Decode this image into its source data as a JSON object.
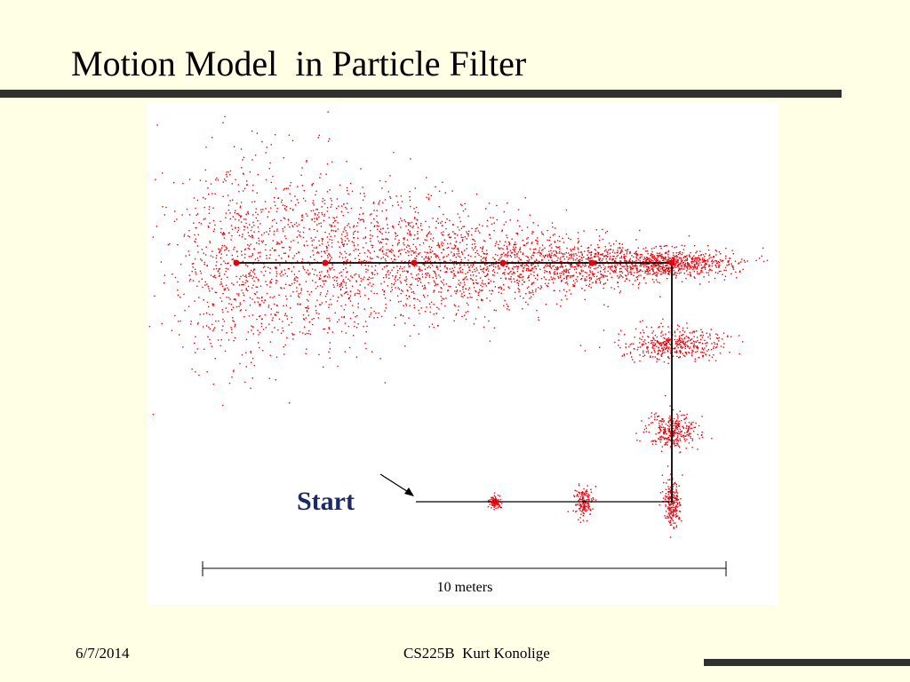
{
  "slide": {
    "title": "Motion Model  in Particle Filter",
    "footer_date": "6/7/2014",
    "footer_center": "CS225B  Kurt Konolige"
  },
  "figure": {
    "start_label": "Start",
    "scale_label": "10 meters"
  },
  "colors": {
    "background": "#ffffe6",
    "particle": "#e8000a",
    "path": "#000000",
    "start_label": "#1a2a66",
    "rule": "#303030"
  }
}
